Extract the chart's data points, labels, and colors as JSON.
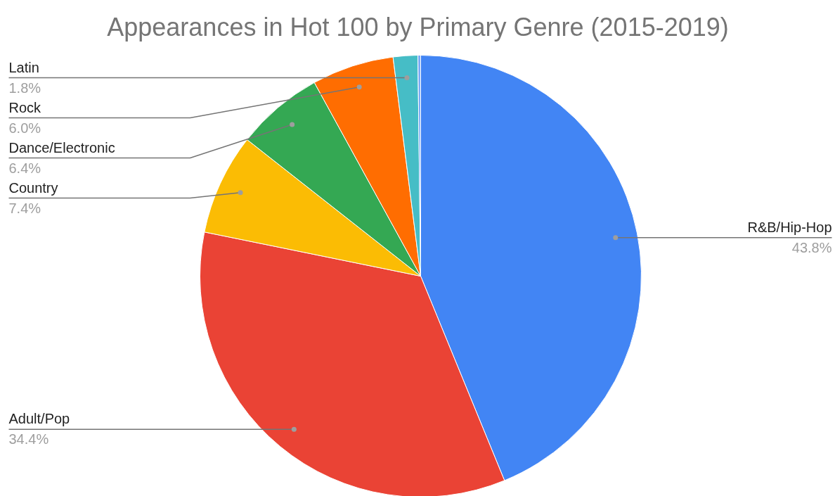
{
  "chart_data": {
    "type": "pie",
    "title": "Appearances in Hot 100 by Primary Genre (2015-2019)",
    "categories": [
      "R&B/Hip-Hop",
      "Adult/Pop",
      "Country",
      "Dance/Electronic",
      "Rock",
      "Latin",
      null
    ],
    "values": [
      43.8,
      34.4,
      7.4,
      6.4,
      6.0,
      1.8,
      0.2
    ],
    "colors": [
      "#4285f4",
      "#ea4335",
      "#fbbc04",
      "#34a853",
      "#ff6d01",
      "#46bdc6",
      "#7baaf7"
    ],
    "value_labels": [
      "43.8%",
      "34.4%",
      "7.4%",
      "6.4%",
      "6.0%",
      "1.8%",
      null
    ]
  }
}
